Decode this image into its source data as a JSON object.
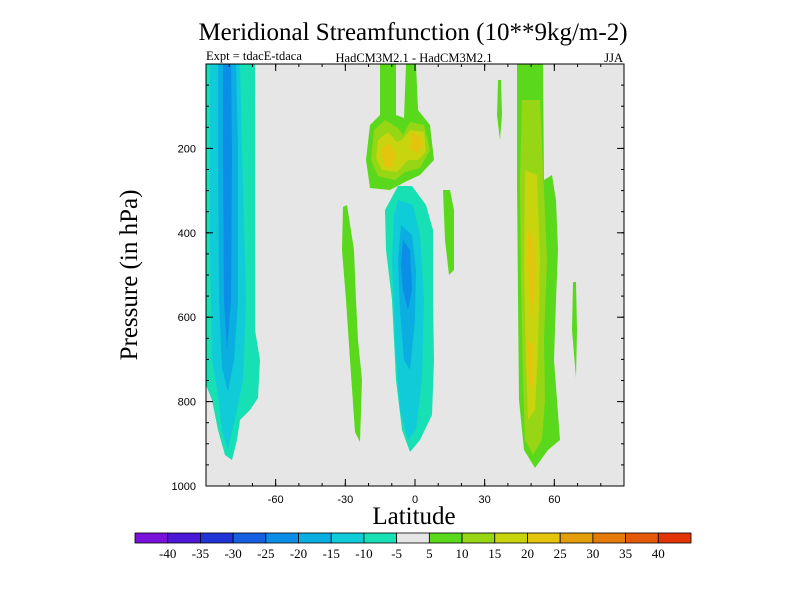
{
  "chart_data": {
    "type": "heatmap",
    "title": "Meridional Streamfunction (10**9kg/m-2)",
    "subtitle_left": "Expt = tdacE-tdaca",
    "subtitle_center": "HadCM3M2.1 - HadCM3M2.1",
    "subtitle_right": "JJA",
    "xlabel": "Latitude",
    "ylabel": "Pressure (in hPa)",
    "xlim": [
      -90,
      90
    ],
    "ylim": [
      1000,
      0
    ],
    "xticks": [
      -60,
      -30,
      0,
      30,
      60
    ],
    "xtick_labels": [
      "-60",
      "-30",
      "0",
      "30",
      "60"
    ],
    "yticks": [
      200,
      400,
      600,
      800,
      1000
    ],
    "ytick_labels": [
      "200",
      "400",
      "600",
      "800",
      "1000"
    ],
    "background_color": "#e6e6e6",
    "levels": [
      -40,
      -35,
      -30,
      -25,
      -20,
      -15,
      -10,
      -5,
      5,
      10,
      15,
      20,
      25,
      30,
      35,
      40
    ],
    "colorbar_labels": [
      "-40",
      "-35",
      "-30",
      "-25",
      "-20",
      "-15",
      "-10",
      "-5",
      "5",
      "10",
      "15",
      "20",
      "25",
      "30",
      "35",
      "40"
    ],
    "colorbar_colors": [
      "#7a10dc",
      "#4a18d6",
      "#2034d8",
      "#1460e0",
      "#0a8ee8",
      "#0aaee0",
      "#10ccd8",
      "#16e0b4",
      "#e6e6e6",
      "#5ad81c",
      "#96d614",
      "#c8d40e",
      "#e4c40c",
      "#e49e0a",
      "#e47a08",
      "#e45a06",
      "#e23404"
    ],
    "features": [
      {
        "name": "southern-negative-cell",
        "lat_range": [
          -83,
          -63
        ],
        "p_range": [
          0,
          960
        ],
        "min_value": -20
      },
      {
        "name": "equatorial-negative-cell",
        "lat_range": [
          -10,
          7
        ],
        "p_range": [
          290,
          920
        ],
        "min_value": -20
      },
      {
        "name": "upper-positive-cells",
        "lat_range": [
          -16,
          10
        ],
        "p_range": [
          0,
          300
        ],
        "max_value": 20
      },
      {
        "name": "northern-positive-cell",
        "lat_range": [
          40,
          60
        ],
        "p_range": [
          0,
          960
        ],
        "max_value": 15
      }
    ]
  }
}
